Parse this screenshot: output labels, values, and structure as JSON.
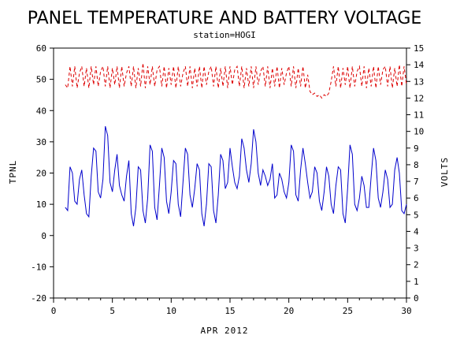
{
  "chart_data": {
    "type": "line",
    "title": "PANEL TEMPERATURE AND BATTERY VOLTAGE",
    "subtitle": "station=HOGI",
    "xlabel": "APR 2012",
    "ylabel_left": "TPNL",
    "ylabel_right": "VOLTS",
    "xlim": [
      0,
      30
    ],
    "ylim_left": [
      -20,
      60
    ],
    "ylim_right": [
      0,
      15
    ],
    "x_ticks": [
      0,
      5,
      10,
      15,
      20,
      25,
      30
    ],
    "y_ticks_left": [
      -20,
      -10,
      0,
      10,
      20,
      30,
      40,
      50,
      60
    ],
    "y_ticks_right": [
      0,
      1,
      2,
      3,
      4,
      5,
      6,
      7,
      8,
      9,
      10,
      11,
      12,
      13,
      14,
      15
    ],
    "grid": false,
    "series": [
      {
        "axis": "left",
        "color": "#0000cc",
        "style": "solid",
        "x": [
          1.0,
          1.2,
          1.4,
          1.6,
          1.8,
          2.0,
          2.2,
          2.4,
          2.6,
          2.8,
          3.0,
          3.2,
          3.4,
          3.6,
          3.8,
          4.0,
          4.2,
          4.4,
          4.6,
          4.8,
          5.0,
          5.2,
          5.4,
          5.6,
          5.8,
          6.0,
          6.2,
          6.4,
          6.6,
          6.8,
          7.0,
          7.2,
          7.4,
          7.6,
          7.8,
          8.0,
          8.2,
          8.4,
          8.6,
          8.8,
          9.0,
          9.2,
          9.4,
          9.6,
          9.8,
          10.0,
          10.2,
          10.4,
          10.6,
          10.8,
          11.0,
          11.2,
          11.4,
          11.6,
          11.8,
          12.0,
          12.2,
          12.4,
          12.6,
          12.8,
          13.0,
          13.2,
          13.4,
          13.6,
          13.8,
          14.0,
          14.2,
          14.4,
          14.6,
          14.8,
          15.0,
          15.2,
          15.4,
          15.6,
          15.8,
          16.0,
          16.2,
          16.4,
          16.6,
          16.8,
          17.0,
          17.2,
          17.4,
          17.6,
          17.8,
          18.0,
          18.2,
          18.4,
          18.6,
          18.8,
          19.0,
          19.2,
          19.4,
          19.6,
          19.8,
          20.0,
          20.2,
          20.4,
          20.6,
          20.8,
          21.0,
          21.2,
          21.4,
          21.6,
          21.8,
          22.0,
          22.2,
          22.4,
          22.6,
          22.8,
          23.0,
          23.2,
          23.4,
          23.6,
          23.8,
          24.0,
          24.2,
          24.4,
          24.6,
          24.8,
          25.0,
          25.2,
          25.4,
          25.6,
          25.8,
          26.0,
          26.2,
          26.4,
          26.6,
          26.8,
          27.0,
          27.2,
          27.4,
          27.6,
          27.8,
          28.0,
          28.2,
          28.4,
          28.6,
          28.8,
          29.0,
          29.2,
          29.4,
          29.6,
          29.8,
          30.0
        ],
        "values": [
          9,
          8,
          22,
          20,
          11,
          10,
          18,
          21,
          13,
          7,
          6,
          19,
          28,
          27,
          14,
          12,
          18,
          35,
          32,
          17,
          14,
          21,
          26,
          16,
          13,
          11,
          19,
          24,
          7,
          3,
          9,
          22,
          21,
          8,
          4,
          12,
          29,
          27,
          9,
          5,
          16,
          28,
          25,
          11,
          7,
          14,
          24,
          23,
          10,
          6,
          17,
          28,
          26,
          13,
          9,
          15,
          23,
          21,
          7,
          3,
          10,
          23,
          22,
          8,
          4,
          13,
          26,
          24,
          15,
          17,
          28,
          22,
          17,
          15,
          19,
          31,
          28,
          21,
          17,
          23,
          34,
          30,
          20,
          16,
          21,
          19,
          16,
          18,
          23,
          12,
          13,
          20,
          18,
          14,
          12,
          17,
          29,
          27,
          13,
          11,
          21,
          28,
          23,
          17,
          12,
          14,
          22,
          20,
          11,
          8,
          14,
          22,
          19,
          10,
          7,
          16,
          22,
          21,
          7,
          4,
          15,
          29,
          26,
          10,
          8,
          12,
          19,
          16,
          9,
          9,
          19,
          28,
          24,
          12,
          9,
          14,
          21,
          18,
          9,
          10,
          21,
          25,
          20,
          8,
          7,
          10
        ]
      },
      {
        "axis": "right",
        "color": "#dd0000",
        "style": "dashed",
        "x": [
          1.0,
          1.2,
          1.4,
          1.6,
          1.8,
          2.0,
          2.2,
          2.4,
          2.6,
          2.8,
          3.0,
          3.2,
          3.4,
          3.6,
          3.8,
          4.0,
          4.2,
          4.4,
          4.6,
          4.8,
          5.0,
          5.2,
          5.4,
          5.6,
          5.8,
          6.0,
          6.2,
          6.4,
          6.6,
          6.8,
          7.0,
          7.2,
          7.4,
          7.6,
          7.8,
          8.0,
          8.2,
          8.4,
          8.6,
          8.8,
          9.0,
          9.2,
          9.4,
          9.6,
          9.8,
          10.0,
          10.2,
          10.4,
          10.6,
          10.8,
          11.0,
          11.2,
          11.4,
          11.6,
          11.8,
          12.0,
          12.2,
          12.4,
          12.6,
          12.8,
          13.0,
          13.2,
          13.4,
          13.6,
          13.8,
          14.0,
          14.2,
          14.4,
          14.6,
          14.8,
          15.0,
          15.2,
          15.4,
          15.6,
          15.8,
          16.0,
          16.2,
          16.4,
          16.6,
          16.8,
          17.0,
          17.2,
          17.4,
          17.6,
          17.8,
          18.0,
          18.2,
          18.4,
          18.6,
          18.8,
          19.0,
          19.2,
          19.4,
          19.6,
          19.8,
          20.0,
          20.2,
          20.4,
          20.6,
          20.8,
          21.0,
          21.2,
          21.4,
          21.6,
          21.8,
          22.0,
          22.2,
          22.4,
          22.6,
          22.8,
          23.0,
          23.2,
          23.4,
          23.6,
          23.8,
          24.0,
          24.2,
          24.4,
          24.6,
          24.8,
          25.0,
          25.2,
          25.4,
          25.6,
          25.8,
          26.0,
          26.2,
          26.4,
          26.6,
          26.8,
          27.0,
          27.2,
          27.4,
          27.6,
          27.8,
          28.0,
          28.2,
          28.4,
          28.6,
          28.8,
          29.0,
          29.2,
          29.4,
          29.6,
          29.8,
          30.0
        ],
        "values": [
          12.8,
          12.6,
          13.9,
          12.7,
          13.9,
          12.6,
          13.5,
          13.9,
          12.7,
          13.8,
          12.6,
          13.9,
          12.8,
          13.9,
          12.7,
          13.6,
          13.9,
          12.7,
          13.9,
          12.6,
          13.8,
          12.8,
          13.9,
          12.6,
          13.9,
          12.7,
          13.5,
          13.9,
          12.7,
          13.9,
          12.6,
          13.8,
          12.7,
          14.1,
          12.6,
          13.9,
          12.8,
          13.9,
          12.7,
          13.7,
          13.9,
          12.7,
          13.9,
          12.6,
          13.8,
          12.8,
          13.9,
          12.6,
          13.9,
          12.7,
          13.5,
          13.9,
          12.7,
          13.9,
          12.6,
          13.8,
          12.7,
          13.9,
          12.6,
          13.9,
          12.8,
          13.6,
          13.9,
          12.7,
          13.9,
          12.6,
          13.8,
          12.7,
          13.9,
          12.6,
          13.9,
          12.8,
          13.7,
          13.9,
          12.7,
          13.9,
          12.6,
          13.8,
          12.7,
          13.9,
          12.6,
          13.9,
          12.8,
          13.6,
          13.9,
          12.7,
          13.9,
          12.6,
          13.8,
          12.7,
          13.9,
          12.6,
          13.8,
          12.8,
          13.5,
          13.9,
          12.7,
          13.9,
          12.6,
          13.8,
          12.7,
          13.9,
          12.6,
          13.4,
          12.4,
          12.2,
          12.3,
          12.1,
          12.2,
          12.0,
          12.2,
          12.1,
          12.3,
          13.0,
          13.9,
          12.7,
          13.9,
          12.6,
          13.8,
          12.8,
          13.9,
          12.6,
          13.9,
          12.7,
          13.6,
          13.9,
          12.7,
          13.9,
          12.6,
          13.8,
          12.7,
          13.9,
          12.6,
          13.9,
          12.8,
          13.7,
          13.9,
          12.7,
          13.9,
          12.6,
          13.8,
          12.7,
          14.0,
          12.7,
          13.9,
          12.8
        ]
      }
    ]
  }
}
